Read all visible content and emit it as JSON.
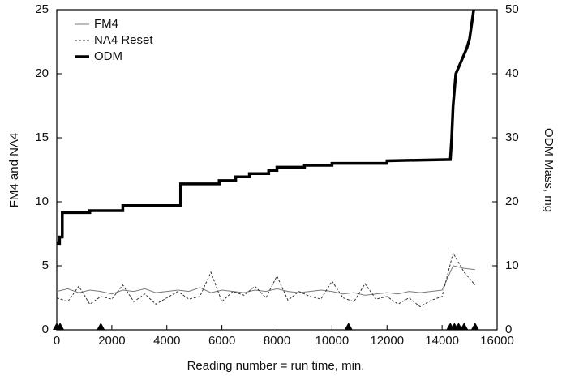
{
  "chart_data": {
    "type": "line",
    "xlabel": "Reading number = run time, min.",
    "ylabel": "FM4 and NA4",
    "y2label": "ODM Mass, mg",
    "x": [
      0,
      400,
      800,
      1200,
      1600,
      2000,
      2400,
      2800,
      3200,
      3600,
      4000,
      4400,
      4800,
      5200,
      5600,
      6000,
      6400,
      6800,
      7200,
      7600,
      8000,
      8400,
      8800,
      9200,
      9600,
      10000,
      10400,
      10800,
      11200,
      11600,
      12000,
      12400,
      12800,
      13200,
      13600,
      14000,
      14400,
      14800,
      15200
    ],
    "series": [
      {
        "name": "FM4",
        "color": "#7a7a7a",
        "values": [
          3.0,
          3.2,
          2.9,
          3.1,
          3.0,
          2.8,
          3.1,
          3.0,
          3.2,
          2.9,
          3.0,
          3.1,
          3.0,
          3.3,
          2.9,
          3.1,
          3.0,
          2.9,
          3.1,
          3.0,
          3.2,
          3.0,
          2.9,
          3.0,
          3.1,
          3.0,
          2.8,
          2.9,
          2.7,
          2.8,
          2.9,
          2.8,
          3.0,
          2.9,
          3.0,
          3.1,
          5.0,
          4.8,
          4.7
        ]
      },
      {
        "name": "NA4 Reset",
        "color": "#333333",
        "dash": true,
        "values": [
          2.5,
          2.2,
          3.4,
          2.0,
          2.6,
          2.4,
          3.5,
          2.2,
          2.8,
          2.0,
          2.5,
          3.0,
          2.4,
          2.6,
          4.5,
          2.2,
          3.0,
          2.7,
          3.4,
          2.5,
          4.2,
          2.3,
          3.0,
          2.6,
          2.4,
          3.8,
          2.5,
          2.2,
          3.6,
          2.4,
          2.6,
          2.0,
          2.5,
          1.8,
          2.3,
          2.6,
          6.0,
          4.5,
          3.5
        ]
      },
      {
        "name": "ODM",
        "color": "#000000",
        "axis": "y2",
        "x": [
          0,
          100,
          100,
          200,
          200,
          1200,
          1200,
          2400,
          2400,
          4500,
          4500,
          5900,
          5900,
          6500,
          6500,
          7000,
          7000,
          7700,
          7700,
          8000,
          8000,
          9000,
          9000,
          10000,
          10000,
          12000,
          12000,
          14300,
          14350,
          14400,
          14500,
          14700,
          14900,
          15000,
          15150
        ],
        "values": [
          13.5,
          13.5,
          14.5,
          14.5,
          18.3,
          18.3,
          18.6,
          18.6,
          19.4,
          19.4,
          22.8,
          22.8,
          23.3,
          23.3,
          23.9,
          23.9,
          24.4,
          24.4,
          24.9,
          24.9,
          25.4,
          25.4,
          25.7,
          25.7,
          26.0,
          26.0,
          26.4,
          26.6,
          30,
          35,
          40,
          42,
          44,
          45.5,
          50
        ]
      }
    ],
    "event_markers": {
      "x": [
        0,
        120,
        1600,
        10600,
        14300,
        14450,
        14600,
        14800,
        15200
      ]
    },
    "xlim": [
      0,
      16000
    ],
    "xticks": [
      0,
      2000,
      4000,
      6000,
      8000,
      10000,
      12000,
      14000,
      16000
    ],
    "ylim": [
      0,
      25
    ],
    "yticks": [
      0,
      5,
      10,
      15,
      20,
      25
    ],
    "y2lim": [
      0,
      50
    ],
    "y2ticks": [
      0,
      10,
      20,
      30,
      40,
      50
    ],
    "legend": "upper-left"
  }
}
